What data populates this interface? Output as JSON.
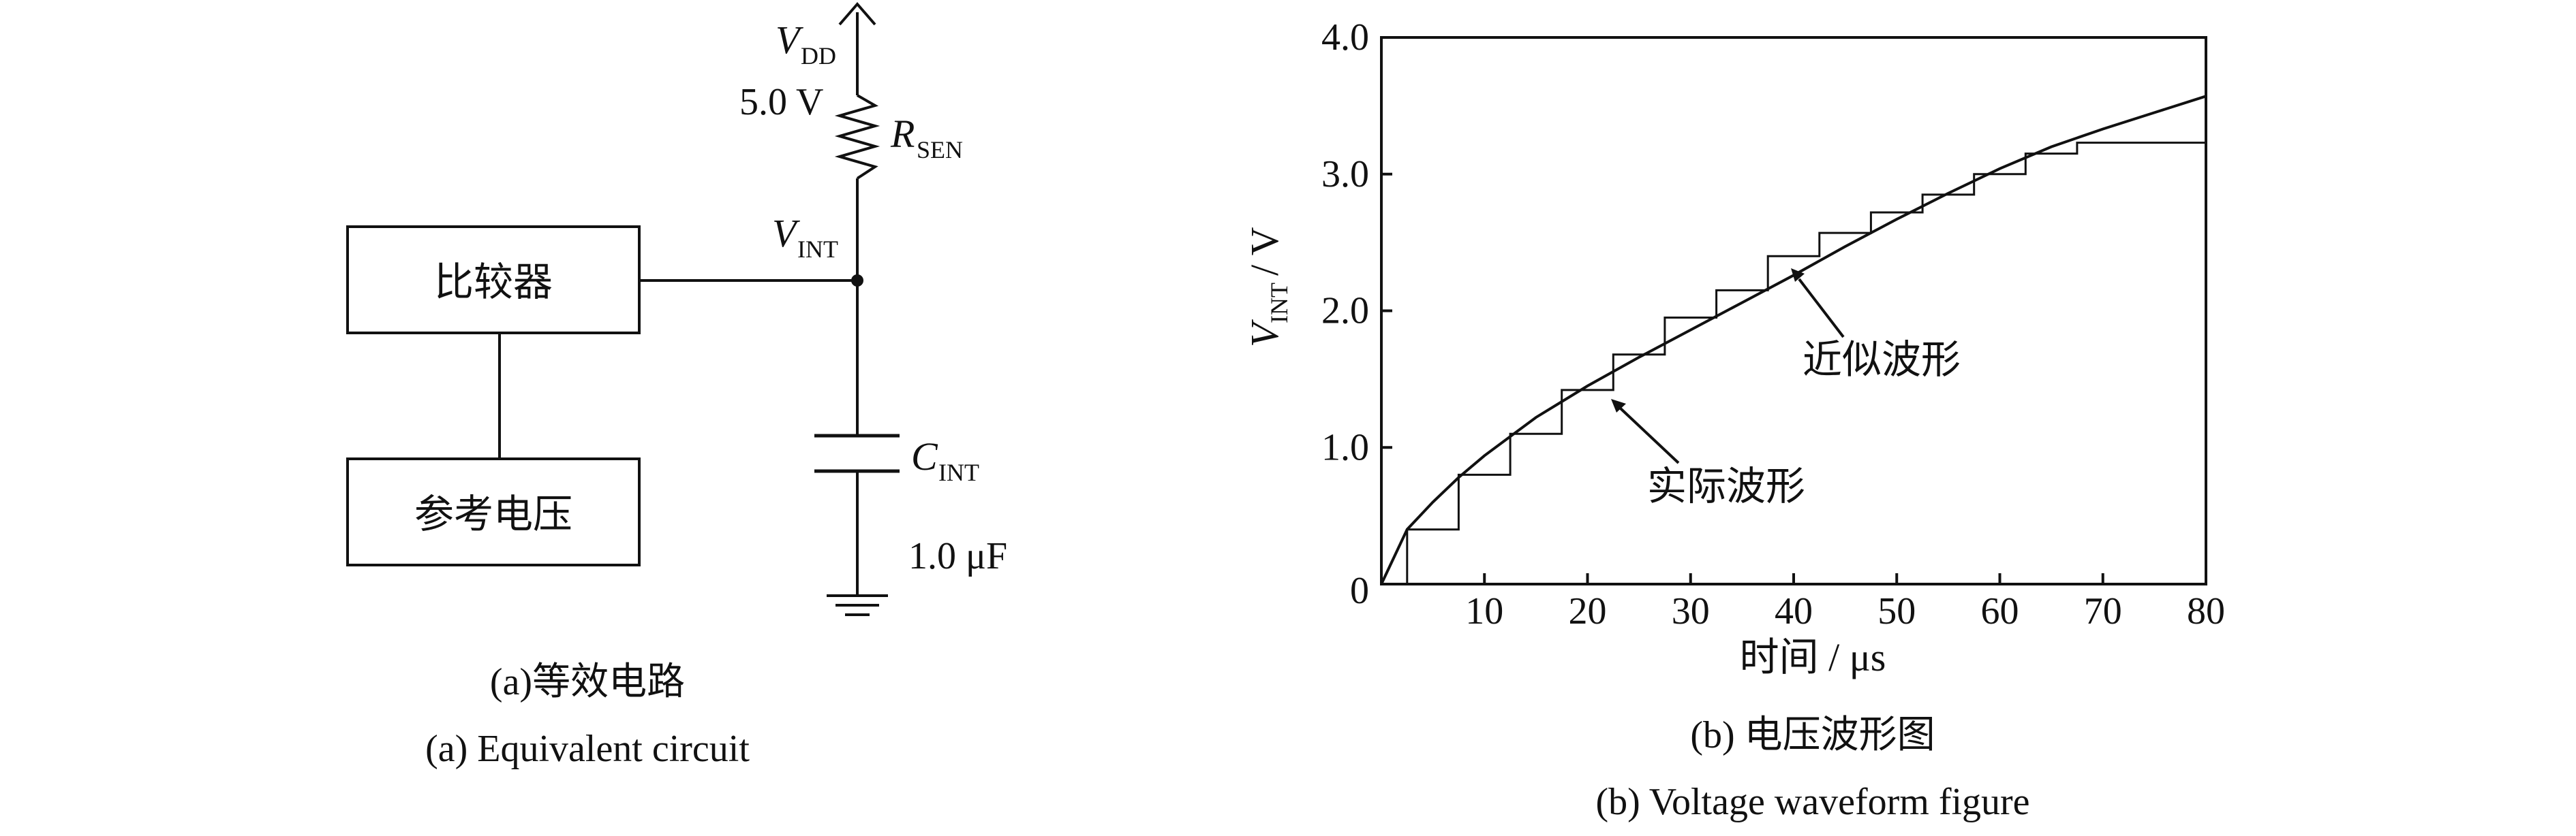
{
  "circuit": {
    "vdd_label": "V",
    "vdd_sub": "DD",
    "vdd_value": "5.0 V",
    "rsen_label": "R",
    "rsen_sub": "SEN",
    "vint_label": "V",
    "vint_sub": "INT",
    "cint_label": "C",
    "cint_sub": "INT",
    "cint_value": "1.0 μF",
    "comparator": "比较器",
    "reference": "参考电压",
    "caption_cn": "(a)等效电路",
    "caption_en": "(a) Equivalent circuit"
  },
  "waveform": {
    "ylabel_main": "V",
    "ylabel_sub": "INT",
    "ylabel_unit": " / V",
    "xlabel": "时间 / μs",
    "annotation_approx": "近似波形",
    "annotation_actual": "实际波形",
    "caption_cn": "(b) 电压波形图",
    "caption_en": "(b) Voltage waveform figure"
  },
  "chart_data": {
    "type": "line",
    "xlabel": "时间 / μs",
    "ylabel": "VINT / V",
    "xlim": [
      0,
      80
    ],
    "ylim": [
      0,
      4.0
    ],
    "x_ticks": [
      0,
      10,
      20,
      30,
      40,
      50,
      60,
      70,
      80
    ],
    "x_tick_labels": [
      "0",
      "10",
      "20",
      "30",
      "40",
      "50",
      "60",
      "70",
      "80"
    ],
    "y_ticks": [
      0,
      1.0,
      2.0,
      3.0,
      4.0
    ],
    "y_tick_labels": [
      "0",
      "1.0",
      "2.0",
      "3.0",
      "4.0"
    ],
    "grid": false,
    "series": [
      {
        "kind": "smooth",
        "x": [
          0,
          2.5,
          5,
          7.5,
          10,
          15,
          20,
          25,
          30,
          35,
          40,
          45,
          50,
          55,
          60,
          65,
          70,
          75,
          80
        ],
        "y": [
          0,
          0.4,
          0.6,
          0.78,
          0.94,
          1.22,
          1.45,
          1.66,
          1.86,
          2.06,
          2.26,
          2.47,
          2.67,
          2.86,
          3.04,
          3.2,
          3.33,
          3.45,
          3.57
        ]
      },
      {
        "kind": "step",
        "x": [
          2.5,
          7.5,
          12.5,
          17.5,
          22.5,
          27.5,
          32.5,
          37.5,
          42.5,
          47.5,
          52.5,
          57.5,
          62.5,
          67.5,
          80
        ],
        "y": [
          0.4,
          0.8,
          1.1,
          1.42,
          1.68,
          1.95,
          2.15,
          2.4,
          2.57,
          2.72,
          2.85,
          3.0,
          3.15,
          3.23,
          3.25
        ]
      }
    ]
  }
}
